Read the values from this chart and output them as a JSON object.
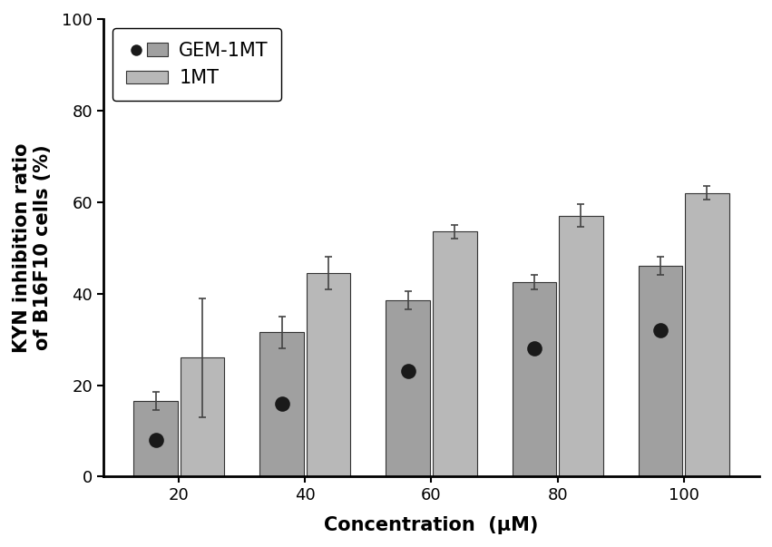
{
  "concentrations": [
    20,
    40,
    60,
    80,
    100
  ],
  "gem1mt_bar_heights": [
    16.5,
    31.5,
    38.5,
    42.5,
    46
  ],
  "gem1mt_errors": [
    2.0,
    3.5,
    2.0,
    1.5,
    2.0
  ],
  "mt1_values": [
    26,
    44.5,
    53.5,
    57,
    62
  ],
  "mt1_errors": [
    13,
    3.5,
    1.5,
    2.5,
    1.5
  ],
  "dot_yvalues": [
    8,
    16,
    23,
    28,
    32
  ],
  "bar_color_gem": "#a0a0a0",
  "bar_color_1mt": "#b8b8b8",
  "dot_color": "#1a1a1a",
  "bar_width": 0.35,
  "bar_gap": 0.02,
  "xlabel": "Concentration  (μM)",
  "ylabel": "KYN inhibition ratio\nof B16F10 cells (%)",
  "ylim": [
    0,
    100
  ],
  "yticks": [
    0,
    20,
    40,
    60,
    80,
    100
  ],
  "legend_gem": "GEM-1MT",
  "legend_1mt": "1MT",
  "label_fontsize": 15,
  "tick_fontsize": 13,
  "legend_fontsize": 15,
  "background_color": "#ffffff",
  "edge_color": "#333333"
}
